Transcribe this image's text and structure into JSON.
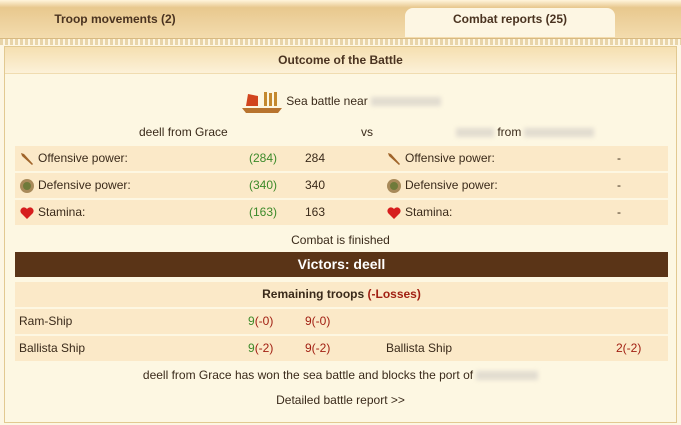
{
  "tabs": [
    {
      "label": "Troop movements (2)",
      "active": false
    },
    {
      "label": "Combat reports (25)",
      "active": true
    }
  ],
  "report": {
    "title": "Outcome of the Battle",
    "battle_label": "Sea battle near",
    "attacker": "deell from Grace",
    "vs": "vs",
    "defender_from": "from",
    "stats": [
      {
        "icon": "sword-icon",
        "label": "Offensive power:",
        "att_base": "(284)",
        "att_value": "284",
        "def_label": "Offensive power:",
        "def_value": "-"
      },
      {
        "icon": "shield-icon",
        "label": "Defensive power:",
        "att_base": "(340)",
        "att_value": "340",
        "def_label": "Defensive power:",
        "def_value": "-"
      },
      {
        "icon": "heart-icon",
        "label": "Stamina:",
        "att_base": "(163)",
        "att_value": "163",
        "def_label": "Stamina:",
        "def_value": "-"
      }
    ],
    "status": "Combat is finished",
    "victors": "Victors: deell",
    "remaining_label": "Remaining troops",
    "losses_label": "(-Losses)",
    "troops": [
      {
        "name": "Ram-Ship",
        "a1": "9",
        "a1l": "(-0)",
        "a2": "9(-0)",
        "def_name": "",
        "def": ""
      },
      {
        "name": "Ballista Ship",
        "a1": "9",
        "a1l": "(-2)",
        "a2": "9(-2)",
        "def_name": "Ballista Ship",
        "def": "2(-2)"
      }
    ],
    "result_text": "deell from Grace has won the sea battle and blocks the port of",
    "detail_link": "Detailed battle report >>"
  },
  "colors": {
    "victor_bar": "#5a3417",
    "green": "#3d8a2a",
    "red": "#a11f12"
  }
}
